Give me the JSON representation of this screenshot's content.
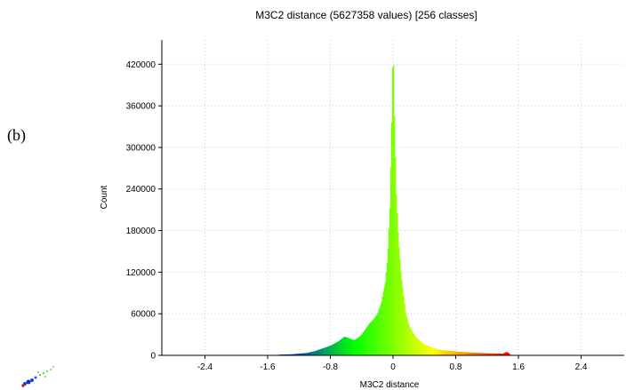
{
  "panel_label": "(b)",
  "chart_data": {
    "type": "bar",
    "title": "M3C2 distance (5627358 values)  [256 classes]",
    "xlabel": "M3C2 distance",
    "ylabel": "Count",
    "xlim": [
      -2.95,
      2.95
    ],
    "ylim": [
      0,
      455000
    ],
    "x_ticks": [
      -2.4,
      -1.6,
      -0.8,
      0,
      0.8,
      1.6,
      2.4
    ],
    "x_tick_labels": [
      "-2.4",
      "-1.6",
      "-0.8",
      "0",
      "0.8",
      "1.6",
      "2.4"
    ],
    "y_ticks": [
      0,
      60000,
      120000,
      180000,
      240000,
      300000,
      360000,
      420000
    ],
    "y_tick_labels": [
      "0",
      "60000",
      "120000",
      "180000",
      "240000",
      "300000",
      "360000",
      "420000"
    ],
    "grid": true,
    "colormap": [
      "#0000ff",
      "#00ff00",
      "#ffff00",
      "#ff0000"
    ],
    "classes": 256,
    "bin_range": [
      -1.5,
      1.5
    ],
    "profile_points": [
      [
        -1.5,
        0
      ],
      [
        -1.45,
        1000
      ],
      [
        -1.3,
        1500
      ],
      [
        -1.1,
        3500
      ],
      [
        -1.0,
        6000
      ],
      [
        -0.9,
        10000
      ],
      [
        -0.8,
        14000
      ],
      [
        -0.7,
        20000
      ],
      [
        -0.62,
        27000
      ],
      [
        -0.55,
        24000
      ],
      [
        -0.5,
        22000
      ],
      [
        -0.45,
        25000
      ],
      [
        -0.4,
        30000
      ],
      [
        -0.35,
        38000
      ],
      [
        -0.3,
        46000
      ],
      [
        -0.25,
        52000
      ],
      [
        -0.2,
        60000
      ],
      [
        -0.15,
        76000
      ],
      [
        -0.1,
        105000
      ],
      [
        -0.07,
        140000
      ],
      [
        -0.04,
        215000
      ],
      [
        -0.02,
        320000
      ],
      [
        0.0,
        455000
      ],
      [
        0.02,
        330000
      ],
      [
        0.04,
        235000
      ],
      [
        0.07,
        165000
      ],
      [
        0.1,
        120000
      ],
      [
        0.13,
        90000
      ],
      [
        0.16,
        62000
      ],
      [
        0.2,
        44000
      ],
      [
        0.25,
        33000
      ],
      [
        0.3,
        25000
      ],
      [
        0.4,
        16000
      ],
      [
        0.5,
        11000
      ],
      [
        0.6,
        8000
      ],
      [
        0.8,
        5500
      ],
      [
        1.0,
        4000
      ],
      [
        1.2,
        3000
      ],
      [
        1.4,
        2500
      ],
      [
        1.45,
        5000
      ],
      [
        1.48,
        3000
      ],
      [
        1.5,
        0
      ]
    ]
  }
}
